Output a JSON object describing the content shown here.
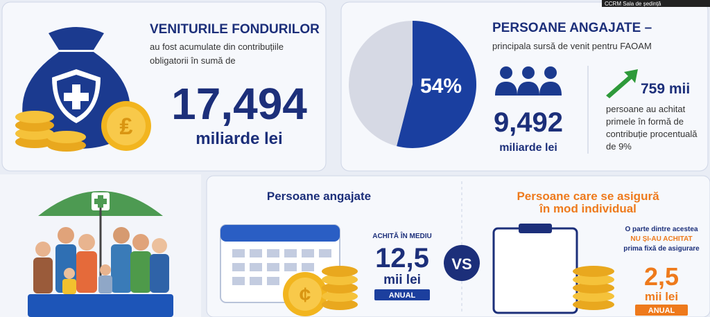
{
  "header": {
    "room": "CCRM Sala de ședință"
  },
  "funds": {
    "title": "VENITURILE FONDURILOR",
    "line1": "au fost acumulate din contribuțiile",
    "line2": "obligatorii în sumă de",
    "amount": "17,494",
    "unit": "miliarde lei"
  },
  "employed": {
    "title": "PERSOANE ANGAJATE –",
    "subtitle": "principala sursă de venit pentru FAOAM",
    "pie": {
      "value": 54,
      "label": "54%"
    },
    "amount": "9,492",
    "unit": "miliarde lei",
    "persons": "759 mii",
    "note1": "persoane au achitat",
    "note2": "primele în formă de",
    "note3": "contribuție procentuală",
    "note4": "de 9%"
  },
  "compare": {
    "left_title": "Persoane angajate",
    "left_caption": "ACHITĂ ÎN MEDIU",
    "left_amount": "12,5",
    "left_unit": "mii lei",
    "left_period": "ANUAL",
    "vs": "VS",
    "right_title1": "Persoane care se asigură",
    "right_title2": "în mod individual",
    "right_note1": "O parte dintre acestea",
    "right_note2": "NU ȘI-AU ACHITAT",
    "right_note3": "prima fixă de asigurare",
    "right_amount": "2,5",
    "right_unit": "mii lei",
    "right_period": "ANUAL"
  }
}
